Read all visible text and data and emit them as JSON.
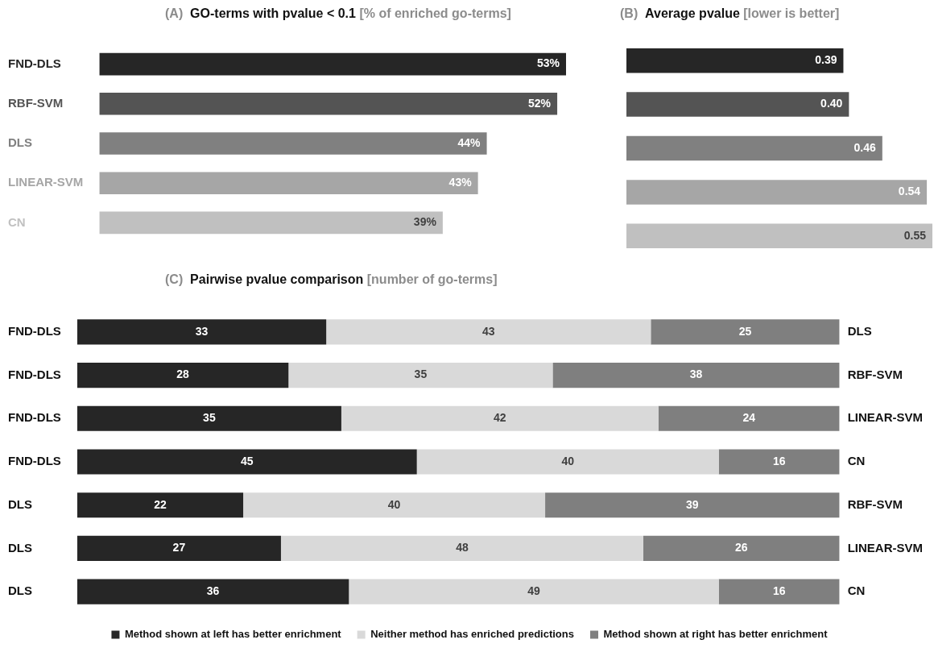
{
  "chart_data": [
    {
      "type": "bar",
      "orientation": "horizontal",
      "title": "(A)  GO-terms with pvalue < 0.1 [% of enriched go-terms]",
      "categories": [
        "FND-DLS",
        "RBF-SVM",
        "DLS",
        "LINEAR-SVM",
        "CN"
      ],
      "values": [
        53,
        52,
        44,
        43,
        39
      ],
      "colors": [
        "#262626",
        "#545454",
        "#808080",
        "#a6a6a6",
        "#c0c0c0"
      ],
      "value_labels": [
        "53%",
        "52%",
        "44%",
        "43%",
        "39%"
      ]
    },
    {
      "type": "bar",
      "orientation": "horizontal",
      "title": "(B)  Average pvalue [lower is better]",
      "categories": [
        null,
        null,
        null,
        null,
        null
      ],
      "values": [
        0.39,
        0.4,
        0.46,
        0.54,
        0.55
      ],
      "colors": [
        "#262626",
        "#545454",
        "#808080",
        "#a6a6a6",
        "#c0c0c0"
      ],
      "value_labels": [
        "0.39",
        "0.40",
        "0.46",
        "0.54",
        "0.55"
      ],
      "tick_labels": false
    },
    {
      "type": "bar",
      "orientation": "horizontal",
      "stacked": true,
      "title": "(C)  Pairwise pvalue comparison [number of go-terms]",
      "categories": [
        "FND-DLS",
        "FND-DLS",
        "FND-DLS",
        "FND-DLS",
        "DLS",
        "DLS",
        "DLS"
      ],
      "y2_categories": [
        "DLS",
        "RBF-SVM",
        "LINEAR-SVM",
        "CN",
        "RBF-SVM",
        "LINEAR-SVM",
        "CN"
      ],
      "data_labels": true,
      "legend": "bottom",
      "series": [
        {
          "name": "Method shown at left has better enrichment",
          "color": "#262626",
          "values": [
            33,
            28,
            35,
            45,
            22,
            27,
            36
          ]
        },
        {
          "name": "Neither method has enriched predictions",
          "color": "#d9d9d9",
          "values": [
            43,
            35,
            42,
            40,
            40,
            48,
            49
          ]
        },
        {
          "name": "Method shown at right has better enrichment",
          "color": "#7f7f7f",
          "values": [
            25,
            38,
            24,
            16,
            39,
            26,
            16
          ]
        }
      ]
    }
  ]
}
